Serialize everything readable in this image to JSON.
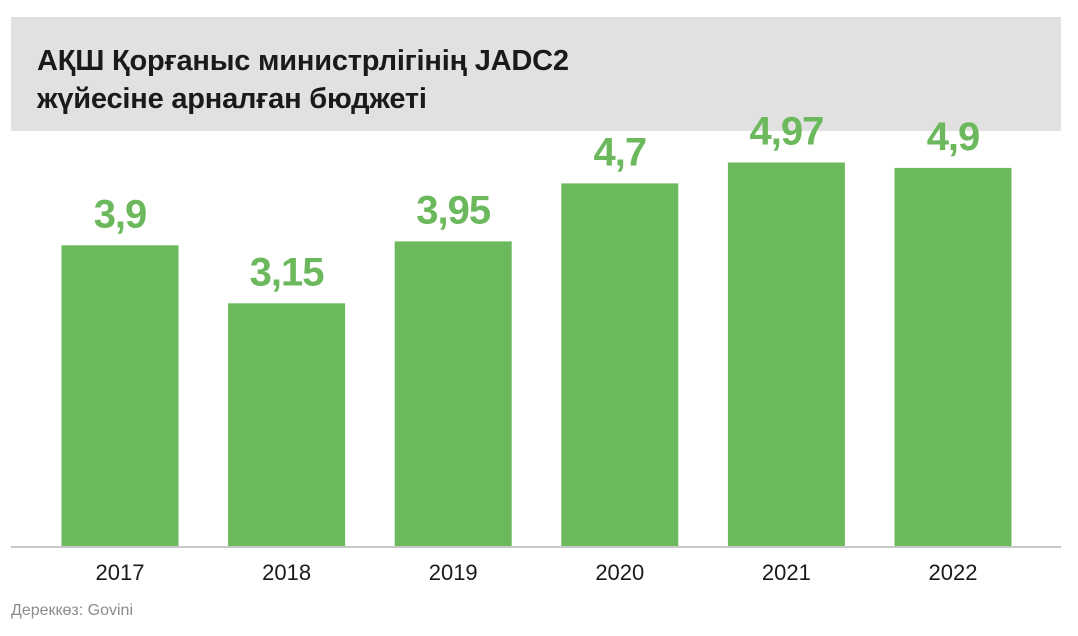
{
  "chart_data": {
    "type": "bar",
    "title_lines": [
      "АҚШ Қорғаныс министрлігінің JADC2",
      "жүйесіне арналған бюджеті"
    ],
    "categories": [
      "2017",
      "2018",
      "2019",
      "2020",
      "2021",
      "2022"
    ],
    "values": [
      3.9,
      3.15,
      3.95,
      4.7,
      4.97,
      4.9
    ],
    "value_labels": [
      "3,9",
      "3,15",
      "3,95",
      "4,7",
      "4,97",
      "4,9"
    ],
    "bar_color": "#6cb85c",
    "label_color": "#6cb85c",
    "axis_color": "#c8c8c8",
    "ylim": [
      0,
      5.7
    ],
    "grid": false,
    "xlabel": "",
    "ylabel": ""
  },
  "source": "Дереккөз: Govini"
}
